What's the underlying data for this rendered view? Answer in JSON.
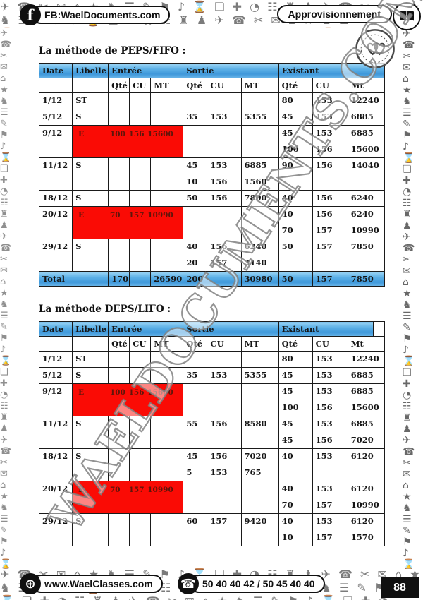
{
  "header": {
    "facebook_label": "FB:WaelDocuments.com",
    "facebook_icon_letter": "f",
    "topic_label": "Approvisionnement"
  },
  "footer": {
    "website": "www.WaelClasses.com",
    "phone_numbers": "50 40 40 42 / 50 45 40 40",
    "page_number": "88"
  },
  "watermark": {
    "text": "WAELDOCUMENTS.COM"
  },
  "colors": {
    "header_blue": "#3e98da",
    "header_blue_light": "#9ad4f5",
    "highlight_red": "#fa0b05",
    "red_cell_text": "#5f150a",
    "border": "#1a1a1a",
    "pattern_grey": "#8f8f8f"
  },
  "decor": {
    "pattern_icon_names": [
      "plane",
      "phone",
      "scissors",
      "envelope",
      "house",
      "star",
      "knight",
      "menu-lines",
      "pencil",
      "flag",
      "music-note",
      "hourglass",
      "document",
      "plus",
      "pie",
      "grid",
      "rook",
      "pawn"
    ],
    "pattern_glyphs": "✈ ☎ ✂ ✉ ⌂ ★ ♞ ☰ ✎ ⚑ ♪ ⌛ ❏ ✚ ◔ ☷ ♜ ♟ "
  },
  "tables": [
    {
      "title": "La méthode de PEPS/FIFO :",
      "group_headers": [
        "Date",
        "Libelle",
        "Entrée",
        "Sortie",
        "Existant"
      ],
      "sub_headers": [
        "Qté",
        "CU",
        "MT",
        "Qté",
        "CU",
        "MT",
        "Qté",
        "CU",
        "Mt"
      ],
      "header_tail": false,
      "rows": [
        {
          "date": "1/12",
          "libelle": "ST",
          "entree": null,
          "sortie": [],
          "existant": [
            [
              "80",
              "153",
              "12240"
            ]
          ]
        },
        {
          "date": "5/12",
          "libelle": "S",
          "entree": null,
          "sortie": [
            [
              "35",
              "153",
              "5355"
            ]
          ],
          "existant": [
            [
              "45",
              "153",
              "6885"
            ]
          ]
        },
        {
          "date": "9/12",
          "libelle": "E",
          "entree": {
            "red": true,
            "values": [
              "100",
              "156",
              "15600"
            ]
          },
          "sortie": [],
          "existant": [
            [
              "45",
              "153",
              "6885"
            ],
            [
              "100",
              "156",
              "15600"
            ]
          ]
        },
        {
          "date": "11/12",
          "libelle": "S",
          "entree": null,
          "sortie": [
            [
              "45",
              "153",
              "6885"
            ],
            [
              "10",
              "156",
              "1560"
            ]
          ],
          "existant": [
            [
              "90",
              "156",
              "14040"
            ]
          ]
        },
        {
          "date": "18/12",
          "libelle": "S",
          "entree": null,
          "sortie": [
            [
              "50",
              "156",
              "7800"
            ]
          ],
          "existant": [
            [
              "40",
              "156",
              "6240"
            ]
          ]
        },
        {
          "date": "20/12",
          "libelle": "E",
          "entree": {
            "red": true,
            "values": [
              "70",
              "157",
              "10990"
            ]
          },
          "sortie": [],
          "existant": [
            [
              "40",
              "156",
              "6240"
            ],
            [
              "70",
              "157",
              "10990"
            ]
          ]
        },
        {
          "date": "29/12",
          "libelle": "S",
          "entree": null,
          "sortie": [
            [
              "40",
              "156",
              "6240"
            ],
            [
              "20",
              "157",
              "3140"
            ]
          ],
          "existant": [
            [
              "50",
              "157",
              "7850"
            ]
          ]
        }
      ],
      "total": {
        "label": "Total",
        "entree": [
          "170",
          "",
          "26590"
        ],
        "sortie": [
          "200",
          "",
          "30980"
        ],
        "existant": [
          "50",
          "157",
          "7850"
        ]
      }
    },
    {
      "title": "La méthode DEPS/LIFO :",
      "group_headers": [
        "Date",
        "Libelle",
        "Entrée",
        "Sortie",
        "Existant"
      ],
      "sub_headers": [
        "Qté",
        "CU",
        "MT",
        "Qté",
        "CU",
        "MT",
        "Qté",
        "CU",
        "Mt"
      ],
      "header_tail": true,
      "rows": [
        {
          "date": "1/12",
          "libelle": "ST",
          "entree": null,
          "sortie": [],
          "existant": [
            [
              "80",
              "153",
              "12240"
            ]
          ]
        },
        {
          "date": "5/12",
          "libelle": "S",
          "entree": null,
          "sortie": [
            [
              "35",
              "153",
              "5355"
            ]
          ],
          "existant": [
            [
              "45",
              "153",
              "6885"
            ]
          ]
        },
        {
          "date": "9/12",
          "libelle": "E",
          "entree": {
            "red": true,
            "values": [
              "100",
              "156",
              "15600"
            ]
          },
          "sortie": [],
          "existant": [
            [
              "45",
              "153",
              "6885"
            ],
            [
              "100",
              "156",
              "15600"
            ]
          ]
        },
        {
          "date": "11/12",
          "libelle": "S",
          "entree": null,
          "sortie": [
            [
              "55",
              "156",
              "8580"
            ]
          ],
          "existant": [
            [
              "45",
              "153",
              "6885"
            ],
            [
              "45",
              "156",
              "7020"
            ]
          ]
        },
        {
          "date": "18/12",
          "libelle": "S",
          "entree": null,
          "sortie": [
            [
              "45",
              "156",
              "7020"
            ],
            [
              "5",
              "153",
              "765"
            ]
          ],
          "existant": [
            [
              "40",
              "153",
              "6120"
            ]
          ]
        },
        {
          "date": "20/12",
          "libelle": "E",
          "entree": {
            "red": true,
            "values": [
              "70",
              "157",
              "10990"
            ]
          },
          "sortie": [],
          "existant": [
            [
              "40",
              "153",
              "6120"
            ],
            [
              "70",
              "157",
              "10990"
            ]
          ]
        },
        {
          "date": "29/12",
          "libelle": "S",
          "entree": null,
          "sortie": [
            [
              "60",
              "157",
              "9420"
            ]
          ],
          "existant": [
            [
              "40",
              "153",
              "6120"
            ],
            [
              "10",
              "157",
              "1570"
            ]
          ]
        }
      ],
      "total": null
    }
  ]
}
